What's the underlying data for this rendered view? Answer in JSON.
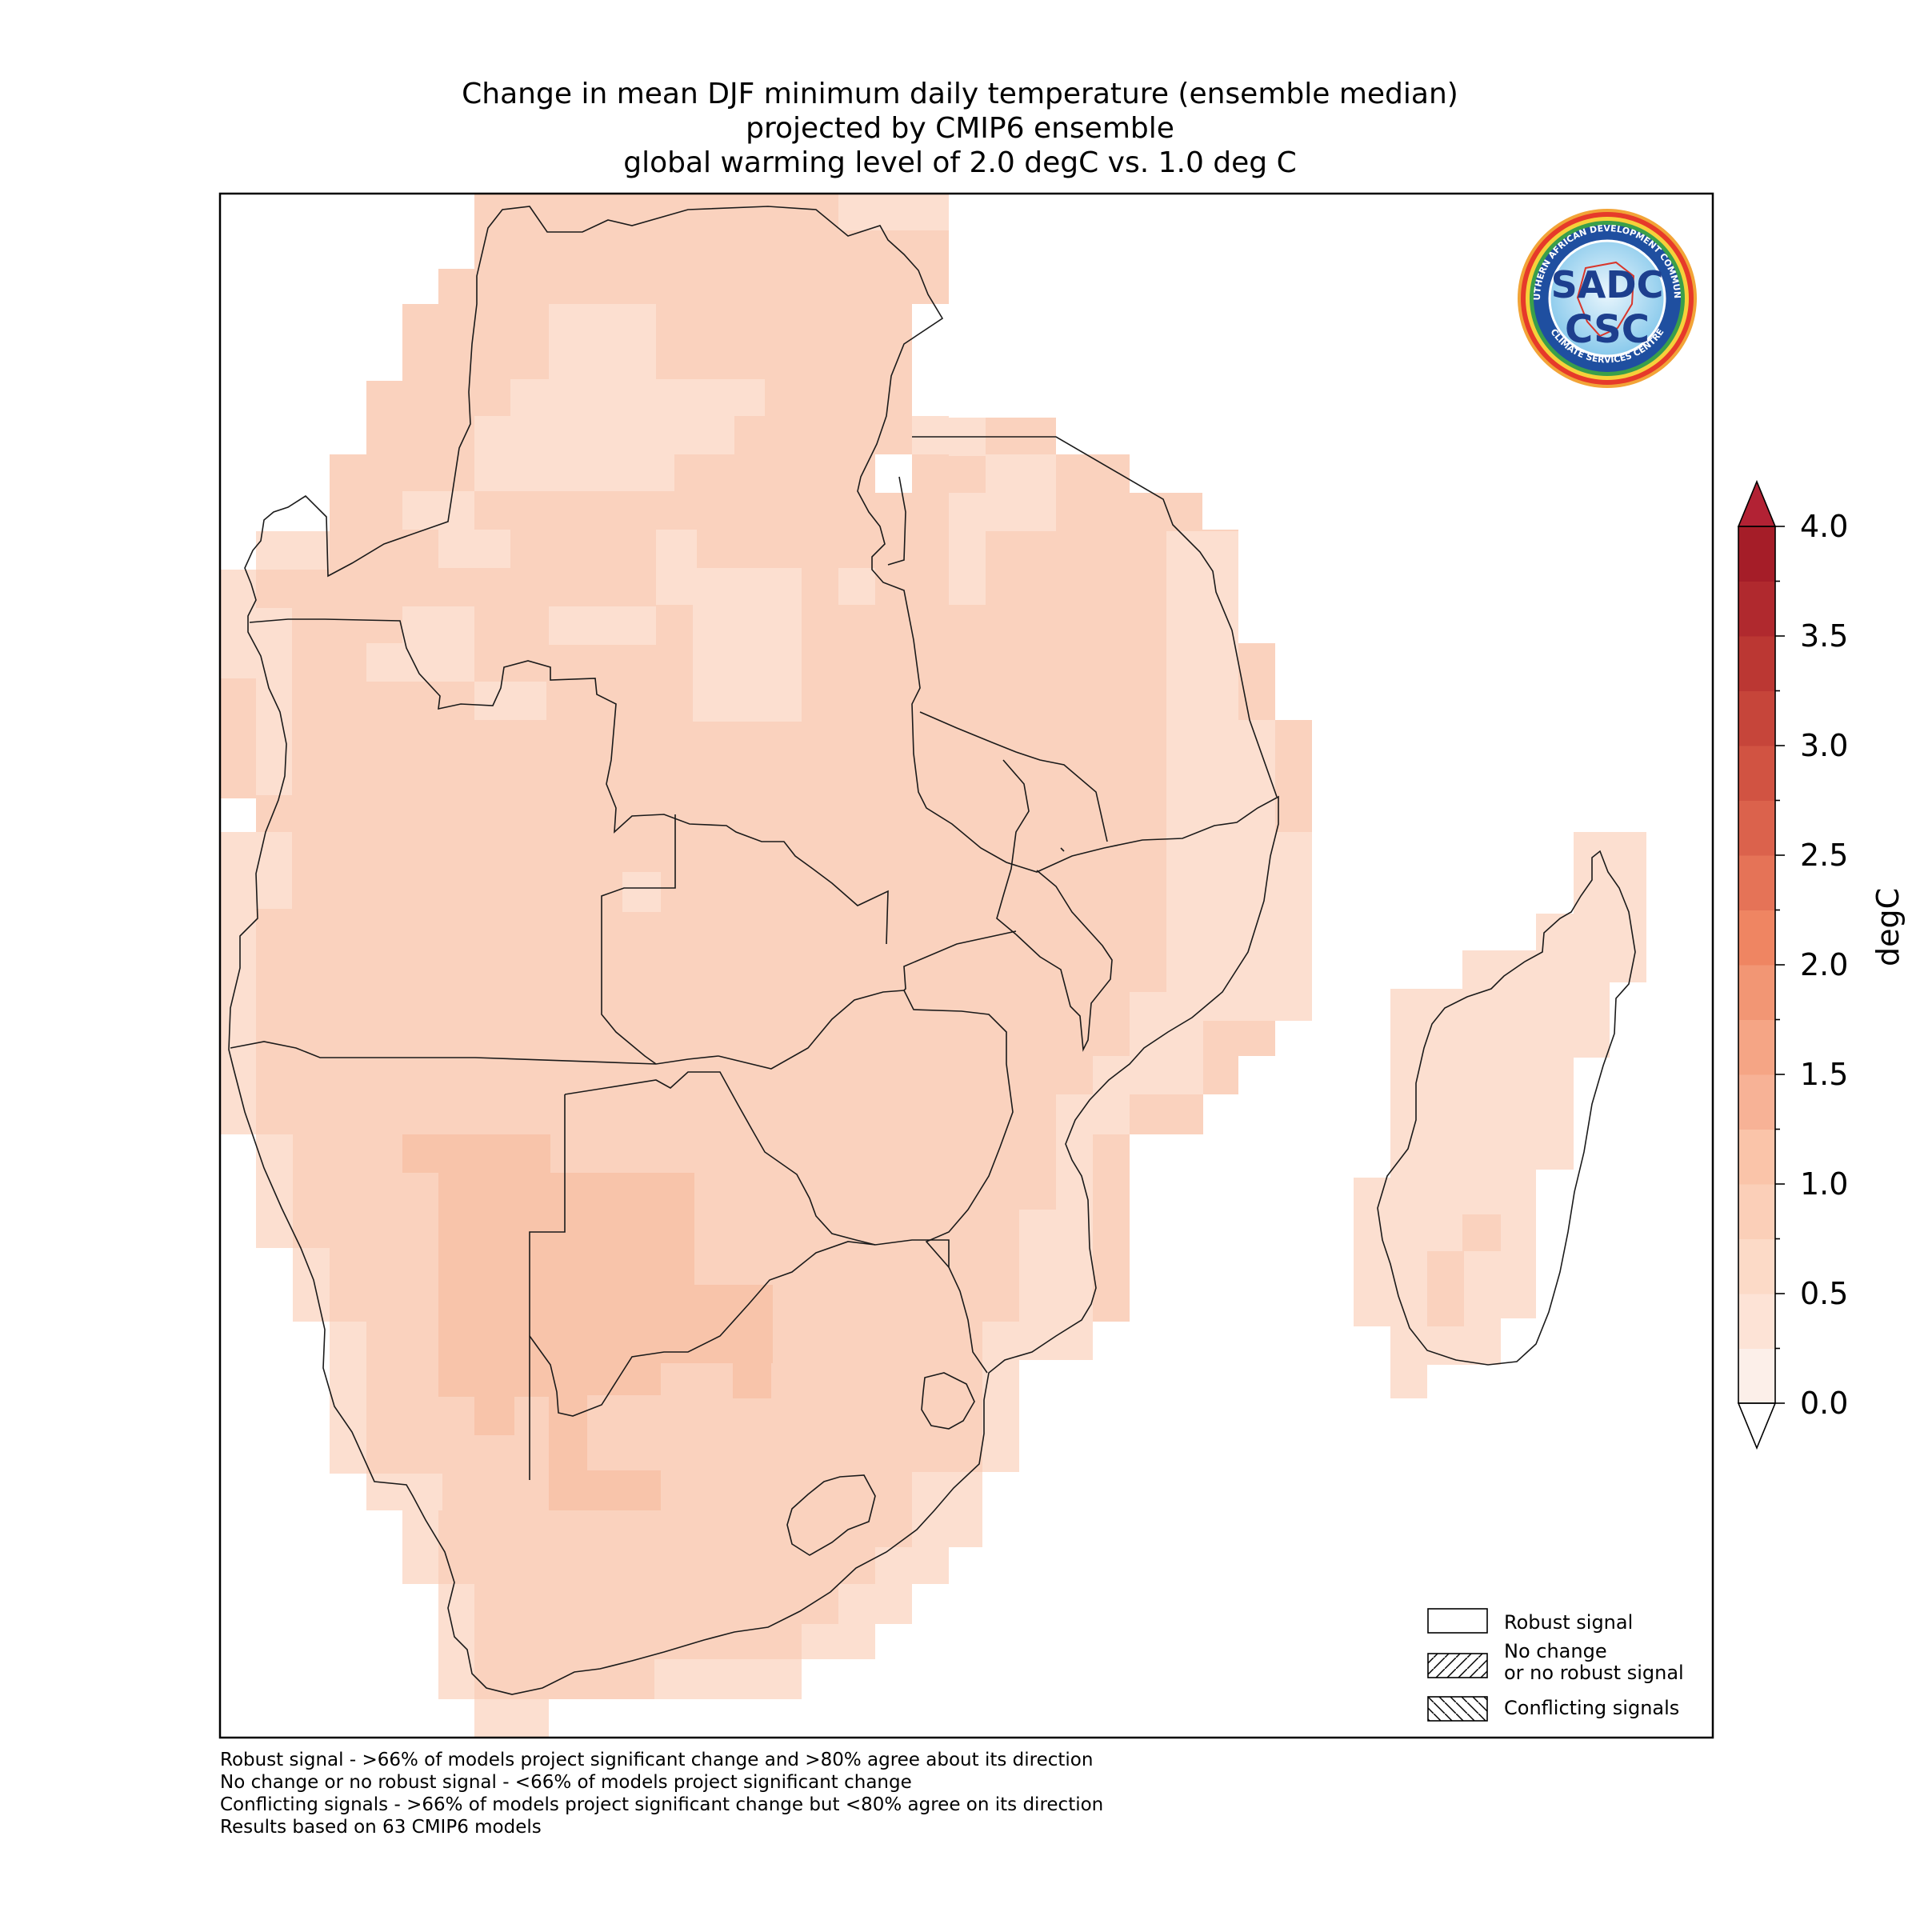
{
  "title": {
    "line1": "Change in mean DJF minimum daily temperature (ensemble median)",
    "line2": "projected by CMIP6 ensemble",
    "line3": "global warming level of 2.0 degC vs. 1.0 deg C"
  },
  "colorbar": {
    "unit": "degC",
    "ticks": [
      "0.0",
      "0.5",
      "1.0",
      "1.5",
      "2.0",
      "2.5",
      "3.0",
      "3.5",
      "4.0"
    ],
    "min": 0.0,
    "max": 4.0,
    "step": 0.25,
    "colors": [
      "#fcefe9",
      "#fde3d6",
      "#fcdac7",
      "#fbcfb8",
      "#fac4a9",
      "#f7b296",
      "#f5a585",
      "#f29674",
      "#ef8562",
      "#e57357",
      "#db624c",
      "#d15342",
      "#c6453a",
      "#bb3733",
      "#b0292e",
      "#a51d28"
    ],
    "extend": "both",
    "over_color": "#b22234",
    "under_color": "#ffffff"
  },
  "legend": {
    "items": [
      {
        "label": "Robust signal",
        "hatch": "none"
      },
      {
        "label": "No change",
        "label2": "or no robust signal",
        "hatch": "forward"
      },
      {
        "label": "Conflicting signals",
        "hatch": "backward"
      }
    ]
  },
  "logo": {
    "name": "sadc-csc-logo",
    "top_text": "SOUTHERN AFRICAN DEVELOPMENT COMMUNITY",
    "bottom_text": "CLIMATE SERVICES CENTRE",
    "text_sadc": "SADC",
    "text_csc": "CSC"
  },
  "footnotes": [
    "Robust signal - >66% of models project significant change and >80% agree about its direction",
    "No change or no robust signal - <66% of models project significant change",
    "Conflicting signals - >66% of models project significant change but <80% agree on its direction",
    "Results based on 63 CMIP6 models"
  ],
  "map_values": {
    "dominant_change_range_degC": [
      0.5,
      1.5
    ],
    "signal": "Robust signal"
  }
}
